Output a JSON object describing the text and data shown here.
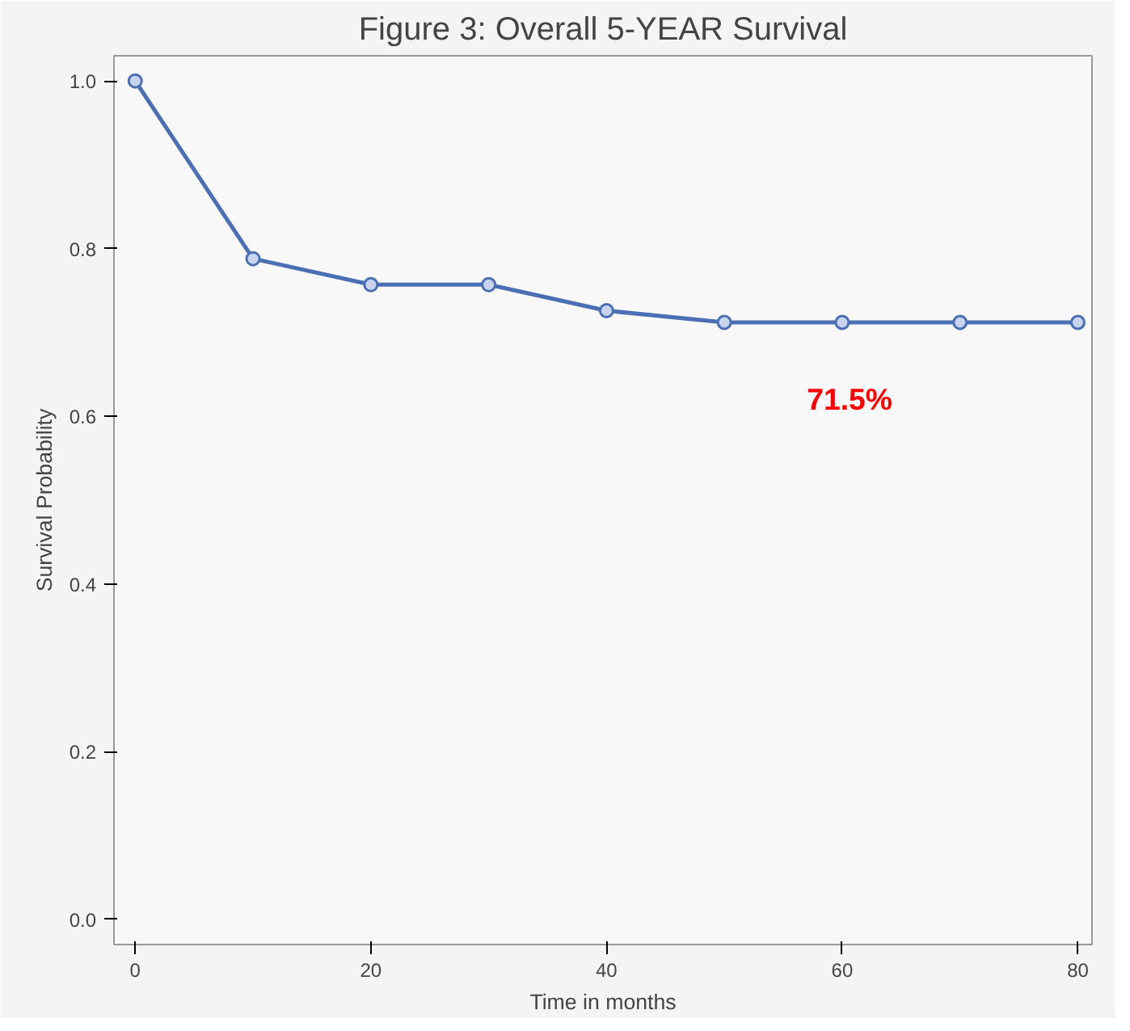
{
  "chart_data": {
    "type": "line",
    "title": "Figure 3: Overall 5-YEAR Survival",
    "xlabel": "Time in months",
    "ylabel": "Survival Probability",
    "x": [
      0,
      10,
      20,
      30,
      40,
      50,
      60,
      70,
      80
    ],
    "series": [
      {
        "color": "#4a6fb5",
        "values": [
          1.0,
          0.788,
          0.757,
          0.757,
          0.726,
          0.712,
          0.712,
          0.712,
          0.712
        ]
      }
    ],
    "xlim": [
      -1.8,
      81.2
    ],
    "ylim": [
      -0.03,
      1.03
    ],
    "xticks": [
      0,
      20,
      40,
      60,
      80
    ],
    "yticks": [
      {
        "value": 0,
        "label": "0.0"
      },
      0.2,
      0.4,
      0.6,
      0.8,
      {
        "value": 1,
        "label": "1.0"
      }
    ],
    "annotations": [
      "71.5%"
    ],
    "marker": "circle",
    "line_style": "solid",
    "grid": false
  }
}
